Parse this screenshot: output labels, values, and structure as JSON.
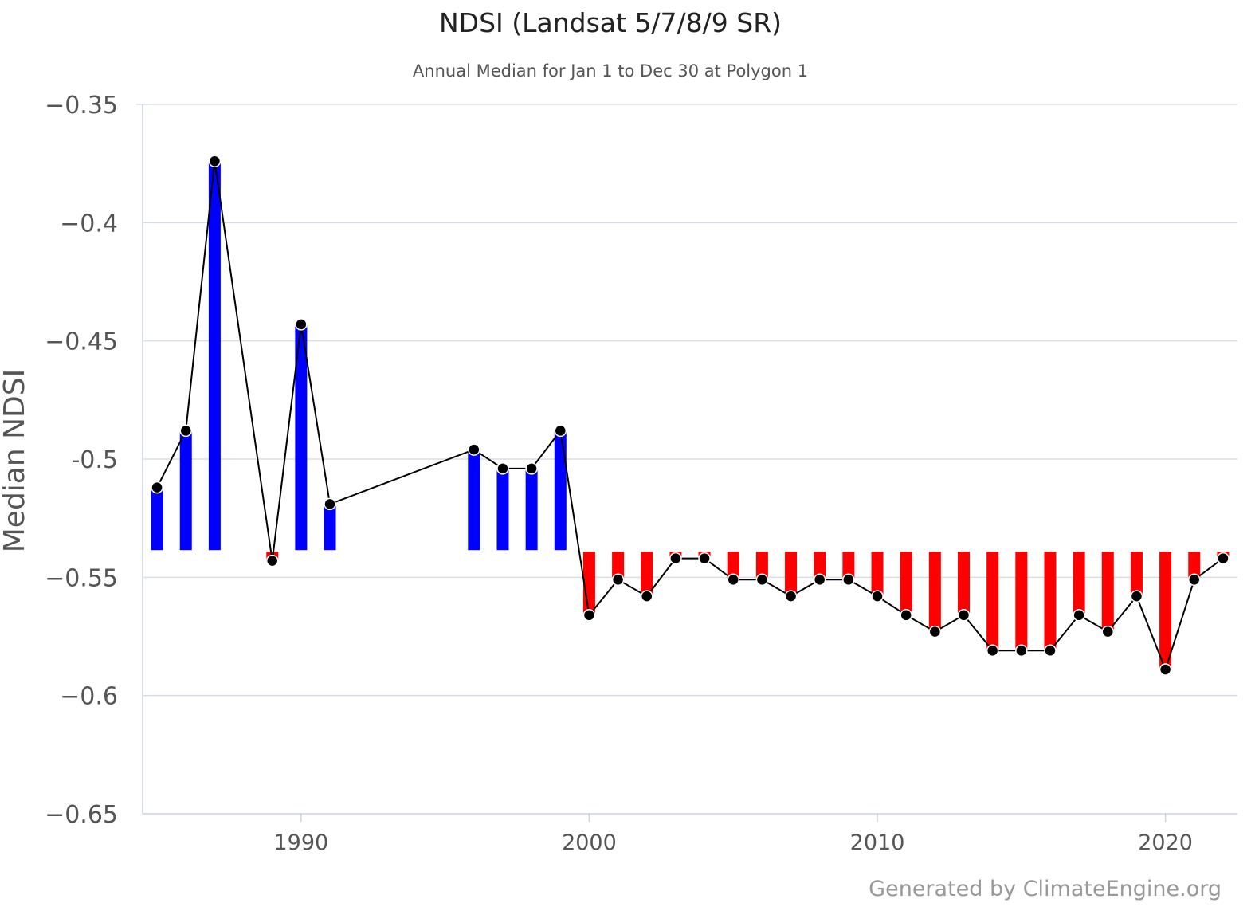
{
  "chart_data": {
    "type": "bar",
    "title": "NDSI (Landsat 5/7/8/9 SR)",
    "subtitle": "Annual Median for Jan 1 to Dec 30 at Polygon 1",
    "ylabel": "Median NDSI",
    "xlabel": "",
    "credit": "Generated by ClimateEngine.org",
    "ylim": [
      -0.65,
      -0.35
    ],
    "yticks": [
      -0.35,
      -0.4,
      -0.45,
      -0.5,
      -0.55,
      -0.6,
      -0.65
    ],
    "ytick_labels": [
      "−0.35",
      "−0.4",
      "−0.45",
      "-0.5",
      "−0.55",
      "−0.6",
      "−0.65"
    ],
    "xlim": [
      1984.5,
      2022.5
    ],
    "xticks": [
      1990,
      2000,
      2010,
      2020
    ],
    "xtick_labels": [
      "1990",
      "2000",
      "2010",
      "2020"
    ],
    "baseline": -0.5385,
    "grid": true,
    "legend": "none",
    "colors": {
      "above": "#0000ff",
      "below": "#ff0000",
      "line": "#000000",
      "marker": "#000000",
      "grid": "#d8dee8",
      "axis": "#cbd2de"
    },
    "x": [
      1985,
      1986,
      1987,
      1989,
      1990,
      1991,
      1996,
      1997,
      1998,
      1999,
      2000,
      2001,
      2002,
      2003,
      2004,
      2005,
      2006,
      2007,
      2008,
      2009,
      2010,
      2011,
      2012,
      2013,
      2014,
      2015,
      2016,
      2017,
      2018,
      2019,
      2020,
      2021,
      2022
    ],
    "values": [
      -0.512,
      -0.488,
      -0.374,
      -0.543,
      -0.443,
      -0.519,
      -0.496,
      -0.504,
      -0.504,
      -0.488,
      -0.566,
      -0.551,
      -0.558,
      -0.542,
      -0.542,
      -0.551,
      -0.551,
      -0.558,
      -0.551,
      -0.551,
      -0.558,
      -0.566,
      -0.573,
      -0.566,
      -0.581,
      -0.581,
      -0.581,
      -0.566,
      -0.573,
      -0.558,
      -0.589,
      -0.551,
      -0.542
    ]
  }
}
